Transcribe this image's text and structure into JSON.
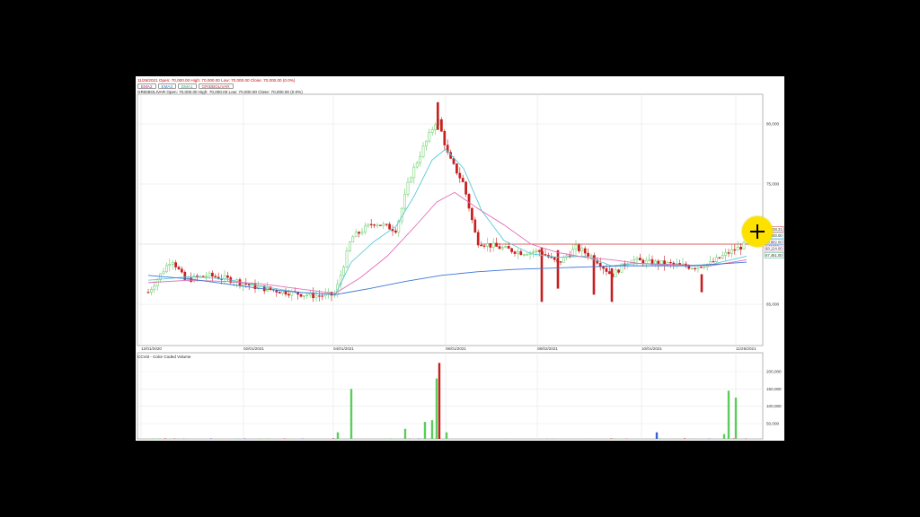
{
  "header": {
    "quote_line": "11/26/2021 Open: 70,000.00 High: 70,000.00 Low: 70,000.00 Close: 70,000.00 (0.0%)",
    "tabs": [
      {
        "label": "EMA2",
        "color": "#c2187a"
      },
      {
        "label": "EMA3",
        "color": "#2a7fd4"
      },
      {
        "label": "EMA1",
        "color": "#29a86a"
      },
      {
        "label": "GRIDBOLIVAR",
        "color": "#d03030"
      }
    ],
    "symbol_line": "GRIDBOLIVAR Open: 70,000.00 High: 70,000.00 Low: 70,000.00 Close: 70,000.00 (0.0%)"
  },
  "volume_title": "CCVol - Color Coded Volume",
  "chart_data": [
    {
      "type": "candlestick",
      "title": "",
      "y_ticks": [
        "80,000",
        "75,000",
        "70,000",
        "65,000"
      ],
      "price_labels": [
        "70,828.21",
        "70,000.00",
        "68,882.00",
        "68,124.00",
        "67,461.00"
      ],
      "x_ticks": [
        "12/01/2020",
        "02/01/2021",
        "04/01/2021",
        "06/01/2021",
        "08/02/2021",
        "10/01/2021",
        "11/26/2021"
      ],
      "resistance_level": 70000,
      "series": [
        "EMA1",
        "EMA2",
        "EMA3"
      ]
    },
    {
      "type": "bar",
      "title": "CCVol - Color Coded Volume",
      "y_ticks": [
        "200,000",
        "150,000",
        "100,000",
        "50,000"
      ]
    }
  ],
  "colors": {
    "up": "#5ccc5c",
    "down": "#c81e1e",
    "ema_fast": "#5cc8d8",
    "ema_mid": "#e070b8",
    "ema_slow": "#3a78d8",
    "level": "#d03030",
    "vol_blue": "#3a5fd8"
  }
}
